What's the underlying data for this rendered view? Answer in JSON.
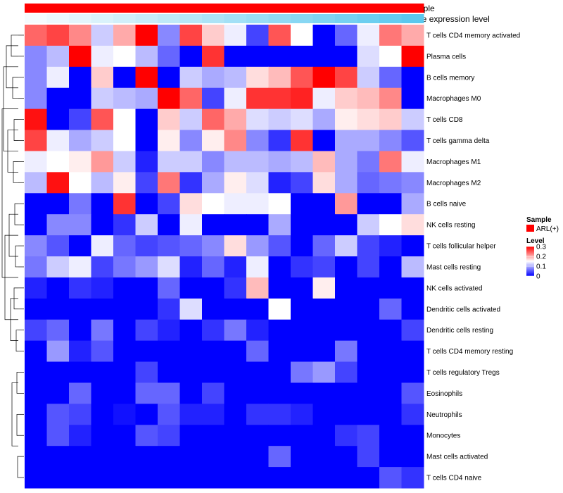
{
  "chart_data": {
    "type": "heatmap",
    "title": "",
    "top_annotations": [
      {
        "name": "Sample",
        "color": "#ff0000"
      },
      {
        "name": "Gene expression level",
        "color_low": "#f5fbfe",
        "color_high": "#5bc8ee"
      }
    ],
    "n_columns": 18,
    "rows": [
      "T cells CD4 memory activated",
      "Plasma cells",
      "B cells memory",
      "Macrophages M0",
      "T cells CD8",
      "T cells gamma delta",
      "Macrophages M1",
      "Macrophages M2",
      "B cells naive",
      "NK cells resting",
      "T cells follicular helper",
      "Mast cells resting",
      "NK cells activated",
      "Dendritic cells activated",
      "Dendritic cells resting",
      "T cells CD4 memory resting",
      "T cells regulatory  Tregs",
      "Eosinophils",
      "Neutrophils",
      "Monocytes",
      "Mast cells activated",
      "T cells CD4 naive"
    ],
    "values": [
      [
        0.24,
        0.26,
        0.22,
        0.12,
        0.2,
        0.3,
        0.08,
        0.26,
        0.18,
        0.14,
        0.04,
        0.25,
        0.15,
        0.0,
        0.06,
        0.14,
        0.23,
        0.2
      ],
      [
        0.08,
        0.11,
        0.3,
        0.14,
        0.15,
        0.11,
        0.06,
        0.0,
        0.27,
        0.0,
        0.0,
        0.0,
        0.0,
        0.0,
        0.0,
        0.13,
        0.15,
        0.3
      ],
      [
        0.08,
        0.14,
        0.0,
        0.18,
        0.0,
        0.3,
        0.0,
        0.12,
        0.1,
        0.11,
        0.17,
        0.19,
        0.25,
        0.3,
        0.26,
        0.12,
        0.06,
        0.0
      ],
      [
        0.08,
        0.0,
        0.0,
        0.12,
        0.11,
        0.1,
        0.3,
        0.24,
        0.04,
        0.14,
        0.27,
        0.27,
        0.28,
        0.14,
        0.18,
        0.19,
        0.22,
        0.0
      ],
      [
        0.29,
        0.0,
        0.04,
        0.25,
        0.15,
        0.0,
        0.18,
        0.12,
        0.24,
        0.2,
        0.13,
        0.12,
        0.13,
        0.1,
        0.16,
        0.17,
        0.18,
        0.12
      ],
      [
        0.26,
        0.14,
        0.1,
        0.12,
        0.15,
        0.0,
        0.16,
        0.08,
        0.16,
        0.22,
        0.08,
        0.03,
        0.27,
        0.0,
        0.1,
        0.1,
        0.08,
        0.05
      ],
      [
        0.14,
        0.15,
        0.16,
        0.21,
        0.12,
        0.02,
        0.12,
        0.12,
        0.08,
        0.11,
        0.11,
        0.1,
        0.11,
        0.19,
        0.1,
        0.07,
        0.23,
        0.14
      ],
      [
        0.11,
        0.29,
        0.15,
        0.11,
        0.16,
        0.04,
        0.23,
        0.03,
        0.1,
        0.16,
        0.13,
        0.02,
        0.04,
        0.17,
        0.1,
        0.06,
        0.07,
        0.08
      ],
      [
        0.0,
        0.0,
        0.07,
        0.0,
        0.27,
        0.0,
        0.04,
        0.17,
        0.15,
        0.14,
        0.14,
        0.15,
        0.0,
        0.0,
        0.21,
        0.0,
        0.0,
        0.1
      ],
      [
        0.0,
        0.08,
        0.08,
        0.0,
        0.03,
        0.12,
        0.0,
        0.14,
        0.0,
        0.0,
        0.0,
        0.1,
        0.0,
        0.0,
        0.0,
        0.12,
        0.15,
        0.17
      ],
      [
        0.08,
        0.05,
        0.0,
        0.14,
        0.06,
        0.04,
        0.05,
        0.06,
        0.08,
        0.17,
        0.09,
        0.05,
        0.0,
        0.06,
        0.12,
        0.04,
        0.02,
        0.0
      ],
      [
        0.07,
        0.12,
        0.14,
        0.04,
        0.07,
        0.09,
        0.13,
        0.02,
        0.06,
        0.02,
        0.14,
        0.0,
        0.03,
        0.04,
        0.0,
        0.04,
        0.0,
        0.11
      ],
      [
        0.02,
        0.0,
        0.03,
        0.02,
        0.0,
        0.0,
        0.06,
        0.0,
        0.0,
        0.03,
        0.19,
        0.0,
        0.0,
        0.16,
        0.0,
        0.0,
        0.0,
        0.0
      ],
      [
        0.0,
        0.0,
        0.0,
        0.0,
        0.0,
        0.0,
        0.03,
        0.13,
        0.0,
        0.0,
        0.0,
        0.15,
        0.0,
        0.0,
        0.0,
        0.0,
        0.06,
        0.0
      ],
      [
        0.04,
        0.06,
        0.0,
        0.07,
        0.0,
        0.04,
        0.02,
        0.0,
        0.03,
        0.07,
        0.02,
        0.0,
        0.0,
        0.0,
        0.0,
        0.0,
        0.0,
        0.04
      ],
      [
        0.0,
        0.09,
        0.02,
        0.05,
        0.0,
        0.0,
        0.0,
        0.0,
        0.0,
        0.0,
        0.06,
        0.0,
        0.0,
        0.0,
        0.07,
        0.0,
        0.0,
        0.0
      ],
      [
        0.0,
        0.0,
        0.0,
        0.0,
        0.0,
        0.04,
        0.0,
        0.0,
        0.0,
        0.0,
        0.0,
        0.0,
        0.07,
        0.09,
        0.04,
        0.0,
        0.0,
        0.0
      ],
      [
        0.0,
        0.0,
        0.06,
        0.0,
        0.0,
        0.06,
        0.06,
        0.0,
        0.04,
        0.0,
        0.0,
        0.0,
        0.0,
        0.0,
        0.0,
        0.0,
        0.0,
        0.05
      ],
      [
        0.0,
        0.05,
        0.04,
        0.0,
        0.01,
        0.0,
        0.05,
        0.02,
        0.02,
        0.0,
        0.03,
        0.03,
        0.02,
        0.0,
        0.0,
        0.0,
        0.0,
        0.03
      ],
      [
        0.0,
        0.05,
        0.02,
        0.0,
        0.0,
        0.05,
        0.04,
        0.0,
        0.0,
        0.0,
        0.0,
        0.0,
        0.0,
        0.0,
        0.03,
        0.04,
        0.0,
        0.0
      ],
      [
        0.0,
        0.0,
        0.0,
        0.0,
        0.0,
        0.0,
        0.0,
        0.0,
        0.0,
        0.0,
        0.0,
        0.06,
        0.0,
        0.0,
        0.0,
        0.04,
        0.0,
        0.0
      ],
      [
        0.0,
        0.0,
        0.0,
        0.0,
        0.0,
        0.0,
        0.0,
        0.0,
        0.0,
        0.0,
        0.0,
        0.0,
        0.0,
        0.0,
        0.0,
        0.0,
        0.05,
        0.03
      ]
    ],
    "value_range": [
      0,
      0.3
    ],
    "colorscale": [
      "#0000ff",
      "#ffffff",
      "#ff0000"
    ],
    "row_dendrogram": true,
    "legend": {
      "sample": {
        "title": "Sample",
        "label": "ARL(+)",
        "color": "#ff0000"
      },
      "level": {
        "title": "Level",
        "ticks": [
          "0.3",
          "0.2",
          "0.1",
          "0"
        ],
        "tick_values": [
          0.3,
          0.2,
          0.1,
          0
        ]
      }
    }
  }
}
